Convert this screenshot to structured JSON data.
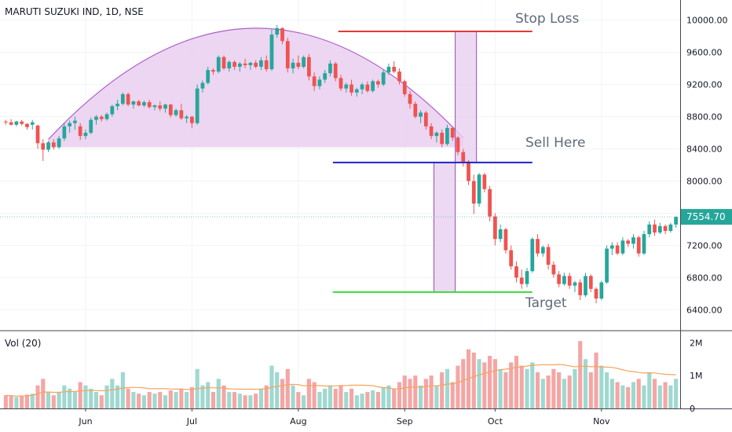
{
  "header": {
    "title": "MARUTI SUZUKI IND, 1D, NSE",
    "volume_label": "Vol (20)"
  },
  "colors": {
    "up": "#26a69a",
    "down": "#ef5350",
    "vol_up": "#9fd8cf",
    "vol_down": "#f4a6a4",
    "ma": "#f5a35c",
    "arc": "#b060c8",
    "fill": "#e9cff0",
    "stop": "#e53935",
    "entry": "#1e24c8",
    "target": "#33dd33"
  },
  "chart_data": {
    "type": "candlestick",
    "title": "MARUTI SUZUKI IND, 1D, NSE",
    "price_axis": {
      "ticks": [
        6400,
        6800,
        7200,
        7600,
        8000,
        8400,
        8800,
        9200,
        9600,
        10000
      ],
      "tick_labels": [
        "6400.00",
        "6800.00",
        "7200.00",
        "7600.00",
        "8000.00",
        "8400.00",
        "8800.00",
        "9200.00",
        "9600.00",
        "10000.00"
      ],
      "range": [
        6150,
        10250
      ]
    },
    "volume_axis": {
      "ticks": [
        0,
        1000000,
        2000000
      ],
      "tick_labels": [
        "0",
        "1M",
        "2M"
      ],
      "range": [
        0,
        2150000
      ]
    },
    "time_axis": {
      "labels": [
        "Jun",
        "Jul",
        "Aug",
        "Sep",
        "Oct",
        "Nov"
      ],
      "label_bar_index": [
        15,
        35,
        55,
        75,
        92,
        112
      ]
    },
    "last_price": {
      "value": 7554.7,
      "label": "7554.70"
    },
    "annotations": [
      {
        "text": "Stop Loss",
        "price": 9860
      },
      {
        "text": "Sell Here",
        "price": 8230
      },
      {
        "text": "Target",
        "price": 6620
      }
    ],
    "levels": [
      {
        "name": "Stop Loss",
        "price": 9860,
        "from_bar": 63,
        "to_bar": 99
      },
      {
        "name": "Sell Here",
        "price": 8230,
        "from_bar": 62,
        "to_bar": 99
      },
      {
        "name": "Target",
        "price": 6620,
        "from_bar": 62,
        "to_bar": 99
      }
    ],
    "measure_boxes": [
      {
        "from_bar": 85,
        "to_bar": 88,
        "low": 8230,
        "high": 9860
      },
      {
        "from_bar": 81,
        "to_bar": 84,
        "low": 6620,
        "high": 8230
      }
    ],
    "rounding_top": {
      "from_bar": 8,
      "peak_bar": 47,
      "to_bar": 86,
      "base": 8420,
      "peak": 9900
    },
    "volume_ma_period": 20,
    "candles": [
      [
        8740,
        8760,
        8700,
        8730,
        400000
      ],
      [
        8730,
        8770,
        8690,
        8700,
        380000
      ],
      [
        8700,
        8750,
        8680,
        8740,
        350000
      ],
      [
        8740,
        8760,
        8690,
        8710,
        390000
      ],
      [
        8710,
        8720,
        8640,
        8670,
        420000
      ],
      [
        8700,
        8760,
        8640,
        8730,
        450000
      ],
      [
        8690,
        8700,
        8400,
        8470,
        700000
      ],
      [
        8470,
        8520,
        8250,
        8390,
        900000
      ],
      [
        8390,
        8500,
        8360,
        8480,
        500000
      ],
      [
        8480,
        8520,
        8390,
        8420,
        400000
      ],
      [
        8420,
        8560,
        8400,
        8530,
        500000
      ],
      [
        8530,
        8720,
        8500,
        8680,
        700000
      ],
      [
        8680,
        8750,
        8600,
        8720,
        600000
      ],
      [
        8720,
        8800,
        8640,
        8750,
        500000
      ],
      [
        8680,
        8720,
        8510,
        8560,
        800000
      ],
      [
        8560,
        8640,
        8520,
        8600,
        700000
      ],
      [
        8600,
        8790,
        8580,
        8760,
        600000
      ],
      [
        8760,
        8820,
        8700,
        8800,
        500000
      ],
      [
        8800,
        8820,
        8740,
        8770,
        400000
      ],
      [
        8770,
        8850,
        8750,
        8830,
        700000
      ],
      [
        8830,
        8950,
        8800,
        8930,
        900000
      ],
      [
        8930,
        9010,
        8880,
        8960,
        700000
      ],
      [
        8960,
        9100,
        8940,
        9080,
        1100000
      ],
      [
        9080,
        9100,
        8930,
        8950,
        600000
      ],
      [
        8950,
        9000,
        8900,
        8990,
        500000
      ],
      [
        8990,
        9010,
        8930,
        8940,
        450000
      ],
      [
        8940,
        9000,
        8920,
        8980,
        400000
      ],
      [
        8980,
        9010,
        8900,
        8920,
        500000
      ],
      [
        8920,
        8950,
        8880,
        8940,
        450000
      ],
      [
        8940,
        8990,
        8870,
        8900,
        500000
      ],
      [
        8900,
        8960,
        8850,
        8950,
        400000
      ],
      [
        8950,
        8960,
        8790,
        8820,
        550000
      ],
      [
        8820,
        8900,
        8800,
        8880,
        500000
      ],
      [
        8880,
        8960,
        8760,
        8780,
        600000
      ],
      [
        8780,
        8820,
        8720,
        8800,
        500000
      ],
      [
        8800,
        8810,
        8660,
        8720,
        650000
      ],
      [
        8720,
        9200,
        8700,
        9150,
        1200000
      ],
      [
        9150,
        9250,
        9100,
        9220,
        700000
      ],
      [
        9220,
        9420,
        9200,
        9380,
        800000
      ],
      [
        9380,
        9400,
        9320,
        9360,
        500000
      ],
      [
        9360,
        9560,
        9340,
        9540,
        900000
      ],
      [
        9540,
        9560,
        9380,
        9400,
        700000
      ],
      [
        9400,
        9500,
        9360,
        9480,
        500000
      ],
      [
        9480,
        9500,
        9380,
        9420,
        500000
      ],
      [
        9420,
        9480,
        9360,
        9460,
        450000
      ],
      [
        9460,
        9520,
        9400,
        9440,
        400000
      ],
      [
        9440,
        9480,
        9380,
        9470,
        400000
      ],
      [
        9470,
        9500,
        9400,
        9420,
        450000
      ],
      [
        9420,
        9540,
        9380,
        9500,
        600000
      ],
      [
        9500,
        9560,
        9360,
        9390,
        700000
      ],
      [
        9390,
        9880,
        9370,
        9820,
        1300000
      ],
      [
        9820,
        9940,
        9780,
        9900,
        1100000
      ],
      [
        9900,
        9910,
        9700,
        9740,
        900000
      ],
      [
        9740,
        9780,
        9350,
        9400,
        1200000
      ],
      [
        9400,
        9520,
        9340,
        9470,
        700000
      ],
      [
        9470,
        9560,
        9390,
        9420,
        500000
      ],
      [
        9420,
        9560,
        9400,
        9540,
        400000
      ],
      [
        9540,
        9580,
        9250,
        9300,
        900000
      ],
      [
        9300,
        9350,
        9120,
        9180,
        800000
      ],
      [
        9180,
        9300,
        9140,
        9260,
        500000
      ],
      [
        9260,
        9380,
        9220,
        9340,
        600000
      ],
      [
        9340,
        9500,
        9300,
        9460,
        700000
      ],
      [
        9460,
        9480,
        9240,
        9280,
        600000
      ],
      [
        9280,
        9320,
        9120,
        9150,
        700000
      ],
      [
        9150,
        9220,
        9100,
        9200,
        500000
      ],
      [
        9200,
        9260,
        9060,
        9100,
        600000
      ],
      [
        9100,
        9160,
        9050,
        9140,
        400000
      ],
      [
        9140,
        9220,
        9080,
        9200,
        450000
      ],
      [
        9200,
        9240,
        9100,
        9120,
        500000
      ],
      [
        9120,
        9260,
        9100,
        9240,
        550000
      ],
      [
        9240,
        9260,
        9160,
        9200,
        500000
      ],
      [
        9200,
        9380,
        9180,
        9350,
        650000
      ],
      [
        9350,
        9460,
        9320,
        9420,
        700000
      ],
      [
        9420,
        9490,
        9340,
        9360,
        600000
      ],
      [
        9360,
        9400,
        9200,
        9240,
        800000
      ],
      [
        9240,
        9260,
        9050,
        9080,
        1000000
      ],
      [
        9080,
        9120,
        8900,
        8960,
        900000
      ],
      [
        8960,
        8990,
        8780,
        8800,
        1000000
      ],
      [
        8800,
        8880,
        8720,
        8850,
        700000
      ],
      [
        8850,
        8870,
        8640,
        8680,
        900000
      ],
      [
        8680,
        8720,
        8520,
        8560,
        1000000
      ],
      [
        8560,
        8620,
        8480,
        8600,
        700000
      ],
      [
        8600,
        8640,
        8420,
        8460,
        1100000
      ],
      [
        8460,
        8700,
        8440,
        8660,
        1200000
      ],
      [
        8660,
        8680,
        8500,
        8540,
        800000
      ],
      [
        8540,
        8560,
        8320,
        8360,
        1300000
      ],
      [
        8360,
        8400,
        8180,
        8240,
        1500000
      ],
      [
        8240,
        8260,
        7950,
        8000,
        1800000
      ],
      [
        8000,
        8080,
        7590,
        7720,
        1700000
      ],
      [
        7720,
        8100,
        7680,
        8080,
        1500000
      ],
      [
        8080,
        8100,
        7860,
        7900,
        1400000
      ],
      [
        7900,
        7940,
        7500,
        7560,
        1600000
      ],
      [
        7560,
        7600,
        7200,
        7280,
        1500000
      ],
      [
        7280,
        7460,
        7240,
        7400,
        1200000
      ],
      [
        7400,
        7420,
        7100,
        7140,
        1100000
      ],
      [
        7140,
        7200,
        6900,
        6940,
        1400000
      ],
      [
        6940,
        7000,
        6740,
        6800,
        1600000
      ],
      [
        6800,
        6900,
        6660,
        6720,
        1300000
      ],
      [
        6720,
        6920,
        6680,
        6880,
        1200000
      ],
      [
        6880,
        7300,
        6860,
        7280,
        1400000
      ],
      [
        7280,
        7340,
        7060,
        7100,
        1100000
      ],
      [
        7100,
        7200,
        7060,
        7180,
        900000
      ],
      [
        7180,
        7220,
        6900,
        6960,
        1000000
      ],
      [
        6960,
        7000,
        6800,
        6840,
        1200000
      ],
      [
        6840,
        6880,
        6680,
        6720,
        1100000
      ],
      [
        6720,
        6860,
        6700,
        6820,
        900000
      ],
      [
        6820,
        6860,
        6660,
        6700,
        1000000
      ],
      [
        6700,
        6760,
        6620,
        6740,
        1200000
      ],
      [
        6740,
        6780,
        6520,
        6580,
        2050000
      ],
      [
        6580,
        6860,
        6560,
        6820,
        1500000
      ],
      [
        6820,
        6840,
        6620,
        6660,
        1100000
      ],
      [
        6660,
        6680,
        6480,
        6540,
        1700000
      ],
      [
        6540,
        6760,
        6520,
        6740,
        1300000
      ],
      [
        6740,
        7200,
        6720,
        7160,
        1100000
      ],
      [
        7160,
        7240,
        7080,
        7200,
        900000
      ],
      [
        7200,
        7240,
        7080,
        7100,
        800000
      ],
      [
        7100,
        7300,
        7080,
        7260,
        700000
      ],
      [
        7260,
        7280,
        7180,
        7220,
        650000
      ],
      [
        7220,
        7340,
        7160,
        7300,
        800000
      ],
      [
        7300,
        7320,
        7060,
        7100,
        900000
      ],
      [
        7100,
        7380,
        7080,
        7340,
        700000
      ],
      [
        7340,
        7500,
        7300,
        7460,
        1100000
      ],
      [
        7460,
        7520,
        7320,
        7360,
        900000
      ],
      [
        7360,
        7480,
        7340,
        7440,
        700000
      ],
      [
        7440,
        7460,
        7340,
        7380,
        800000
      ],
      [
        7380,
        7480,
        7360,
        7460,
        700000
      ],
      [
        7460,
        7560,
        7420,
        7554.7,
        900000
      ]
    ]
  }
}
